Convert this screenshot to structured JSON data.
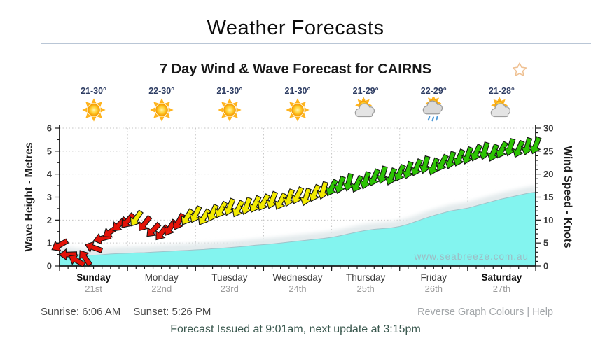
{
  "page": {
    "title": "Weather Forecasts",
    "chart_title": "7 Day Wind & Wave Forecast for CAIRNS",
    "sunrise_label": "Sunrise:",
    "sunrise_value": "6:06 AM",
    "sunset_label": "Sunset:",
    "sunset_value": "5:26 PM",
    "link_reverse": "Reverse Graph Colours",
    "link_separator": "|",
    "link_help": "Help",
    "issued": "Forecast Issued at 9:01am, next update at 3:15pm"
  },
  "chart_data": {
    "type": "area+wind-arrows",
    "title": "7 Day Wind & Wave Forecast for CAIRNS",
    "watermark": "www.seabreeze.com.au",
    "time_step_hours": 3,
    "days": [
      {
        "name": "Sunday",
        "date": "21st",
        "temp": "21-30°",
        "icon": "sunny",
        "bold": true
      },
      {
        "name": "Monday",
        "date": "22nd",
        "temp": "22-30°",
        "icon": "sunny",
        "bold": false
      },
      {
        "name": "Tuesday",
        "date": "23rd",
        "temp": "21-30°",
        "icon": "sunny",
        "bold": false
      },
      {
        "name": "Wednesday",
        "date": "24th",
        "temp": "21-30°",
        "icon": "sunny",
        "bold": false
      },
      {
        "name": "Thursday",
        "date": "25th",
        "temp": "21-29°",
        "icon": "partly-cloudy",
        "bold": false
      },
      {
        "name": "Friday",
        "date": "26th",
        "temp": "22-29°",
        "icon": "rain",
        "bold": false
      },
      {
        "name": "Saturday",
        "date": "27th",
        "temp": "21-28°",
        "icon": "partly-cloudy",
        "bold": true
      }
    ],
    "y_left": {
      "label": "Wave Height - Metres",
      "min": 0,
      "max": 6,
      "ticks": [
        0,
        1,
        2,
        3,
        4,
        5,
        6
      ]
    },
    "y_right": {
      "label": "Wind Speed - Knots",
      "min": 0,
      "max": 30,
      "ticks": [
        0,
        5,
        10,
        15,
        20,
        25,
        30
      ]
    },
    "grid": true,
    "wind_knots": [
      4.5,
      2.5,
      1.2,
      1.8,
      4.0,
      6.0,
      7.5,
      9.0,
      9.8,
      10.3,
      9.2,
      7.8,
      7.2,
      8.3,
      9.6,
      10.6,
      11.2,
      10.6,
      11.5,
      12.2,
      12.8,
      12.4,
      13.0,
      13.4,
      13.8,
      14.3,
      14.0,
      14.8,
      15.3,
      15.0,
      15.8,
      16.4,
      17.0,
      17.6,
      18.2,
      17.8,
      18.6,
      19.2,
      19.8,
      19.4,
      20.2,
      20.8,
      21.4,
      22.0,
      21.6,
      22.4,
      23.0,
      23.5,
      24.0,
      24.6,
      25.0,
      24.6,
      25.2,
      25.8,
      25.4,
      26.0,
      26.2
    ],
    "wind_dir_deg": [
      240,
      268,
      300,
      325,
      290,
      255,
      235,
      225,
      220,
      214,
      218,
      224,
      218,
      212,
      208,
      212,
      206,
      212,
      204,
      210,
      202,
      208,
      200,
      206,
      210,
      202,
      208,
      200,
      206,
      198,
      204,
      196,
      208,
      200,
      194,
      206,
      198,
      204,
      196,
      202,
      206,
      198,
      204,
      196,
      202,
      208,
      198,
      204,
      200,
      206,
      196,
      202,
      208,
      198,
      204,
      196,
      202
    ],
    "wave_metres": [
      0.62,
      0.55,
      0.5,
      0.47,
      0.47,
      0.49,
      0.52,
      0.54,
      0.55,
      0.57,
      0.58,
      0.6,
      0.62,
      0.64,
      0.66,
      0.68,
      0.7,
      0.72,
      0.75,
      0.77,
      0.8,
      0.83,
      0.86,
      0.9,
      0.93,
      0.96,
      1.0,
      1.04,
      1.08,
      1.12,
      1.16,
      1.2,
      1.25,
      1.32,
      1.4,
      1.48,
      1.55,
      1.6,
      1.63,
      1.66,
      1.72,
      1.82,
      1.95,
      2.08,
      2.2,
      2.3,
      2.4,
      2.46,
      2.52,
      2.62,
      2.72,
      2.82,
      2.92,
      3.0,
      3.08,
      3.16,
      3.22
    ],
    "thresholds": {
      "yellow_min": 10,
      "green_min": 16.5
    },
    "colors": {
      "light_wind": "#e41208",
      "moderate_wind": "#f2ea00",
      "fresh_wind": "#2cc403",
      "wave_fill": "#83f4ef",
      "wave_edge": "#9fc3c9",
      "star_outline": "#efc193",
      "grid": "#c4c4c4"
    }
  }
}
